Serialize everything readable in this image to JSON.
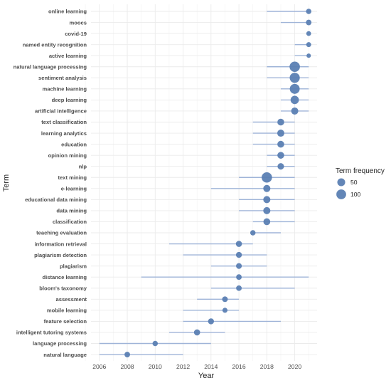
{
  "chart_data": {
    "type": "scatter",
    "title": "",
    "xlabel": "Year",
    "ylabel": "Term",
    "xlim": [
      2005.4,
      2021.6
    ],
    "xticks": [
      2006,
      2008,
      2010,
      2012,
      2014,
      2016,
      2018,
      2020
    ],
    "grid": true,
    "legend": {
      "title": "Term frequency",
      "placement": "right",
      "entries": [
        {
          "label": "50",
          "value": 50
        },
        {
          "label": "100",
          "value": 100
        }
      ]
    },
    "colors": {
      "point": "#5b7fb3",
      "range": "#9fb4d8",
      "grid": "#ebebeb"
    },
    "terms": [
      {
        "term": "online learning",
        "start": 2018,
        "end": 2021,
        "median": 2021,
        "freq": 12
      },
      {
        "term": "moocs",
        "start": 2019,
        "end": 2021,
        "median": 2021,
        "freq": 14
      },
      {
        "term": "covid-19",
        "start": 2021,
        "end": 2021,
        "median": 2021,
        "freq": 8
      },
      {
        "term": "named entity recognition",
        "start": 2020,
        "end": 2021,
        "median": 2021,
        "freq": 9
      },
      {
        "term": "active learning",
        "start": 2020,
        "end": 2021,
        "median": 2021,
        "freq": 6
      },
      {
        "term": "natural language processing",
        "start": 2018,
        "end": 2021,
        "median": 2020,
        "freq": 120
      },
      {
        "term": "sentiment analysis",
        "start": 2018,
        "end": 2021,
        "median": 2020,
        "freq": 110
      },
      {
        "term": "machine learning",
        "start": 2019,
        "end": 2021,
        "median": 2020,
        "freq": 105
      },
      {
        "term": "deep learning",
        "start": 2019,
        "end": 2021,
        "median": 2020,
        "freq": 60
      },
      {
        "term": "artificial intelligence",
        "start": 2019,
        "end": 2021,
        "median": 2020,
        "freq": 35
      },
      {
        "term": "text classification",
        "start": 2017,
        "end": 2020,
        "median": 2019,
        "freq": 30
      },
      {
        "term": "learning analytics",
        "start": 2017,
        "end": 2020,
        "median": 2019,
        "freq": 35
      },
      {
        "term": "education",
        "start": 2017,
        "end": 2020,
        "median": 2019,
        "freq": 30
      },
      {
        "term": "opinion mining",
        "start": 2018,
        "end": 2020,
        "median": 2019,
        "freq": 30
      },
      {
        "term": "nlp",
        "start": 2018,
        "end": 2020,
        "median": 2019,
        "freq": 25
      },
      {
        "term": "text mining",
        "start": 2016,
        "end": 2020,
        "median": 2018,
        "freq": 120
      },
      {
        "term": "e-learning",
        "start": 2014,
        "end": 2020,
        "median": 2018,
        "freq": 35
      },
      {
        "term": "educational data mining",
        "start": 2016,
        "end": 2020,
        "median": 2018,
        "freq": 35
      },
      {
        "term": "data mining",
        "start": 2016,
        "end": 2020,
        "median": 2018,
        "freq": 35
      },
      {
        "term": "classification",
        "start": 2017,
        "end": 2020,
        "median": 2018,
        "freq": 30
      },
      {
        "term": "teaching evaluation",
        "start": 2017,
        "end": 2019,
        "median": 2017,
        "freq": 12
      },
      {
        "term": "information retrieval",
        "start": 2011,
        "end": 2017,
        "median": 2016,
        "freq": 20
      },
      {
        "term": "plagiarism detection",
        "start": 2012,
        "end": 2018,
        "median": 2016,
        "freq": 18
      },
      {
        "term": "plagiarism",
        "start": 2014,
        "end": 2018,
        "median": 2016,
        "freq": 16
      },
      {
        "term": "distance learning",
        "start": 2009,
        "end": 2021,
        "median": 2016,
        "freq": 14
      },
      {
        "term": "bloom's taxonomy",
        "start": 2014,
        "end": 2020,
        "median": 2016,
        "freq": 14
      },
      {
        "term": "assessment",
        "start": 2013,
        "end": 2016,
        "median": 2015,
        "freq": 15
      },
      {
        "term": "mobile learning",
        "start": 2012,
        "end": 2016,
        "median": 2015,
        "freq": 10
      },
      {
        "term": "feature selection",
        "start": 2012,
        "end": 2019,
        "median": 2014,
        "freq": 18
      },
      {
        "term": "intelligent tutoring systems",
        "start": 2011,
        "end": 2015,
        "median": 2013,
        "freq": 20
      },
      {
        "term": "language processing",
        "start": 2006,
        "end": 2014,
        "median": 2010,
        "freq": 12
      },
      {
        "term": "natural language",
        "start": 2006,
        "end": 2012,
        "median": 2008,
        "freq": 14
      }
    ]
  }
}
